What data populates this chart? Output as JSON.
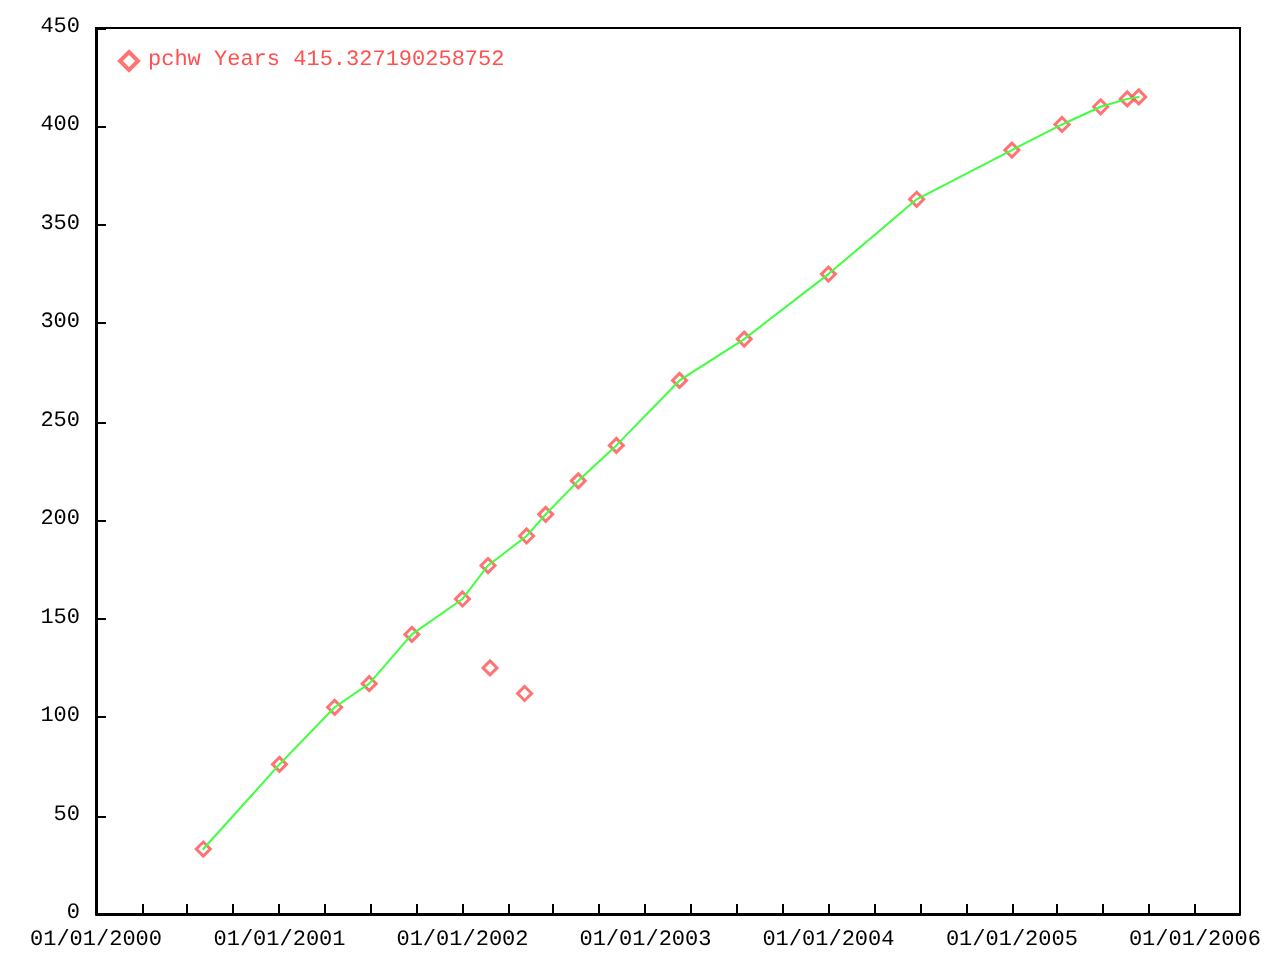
{
  "chart_data": {
    "type": "scatter",
    "xlim": [
      "2000-01-01",
      "2006-04-01"
    ],
    "xticks": [
      {
        "value": "2000-01-01",
        "label": "01/01/2000"
      },
      {
        "value": "2000-04-01",
        "label": null
      },
      {
        "value": "2000-07-01",
        "label": null
      },
      {
        "value": "2000-10-01",
        "label": null
      },
      {
        "value": "2001-01-01",
        "label": "01/01/2001"
      },
      {
        "value": "2001-04-01",
        "label": null
      },
      {
        "value": "2001-07-01",
        "label": null
      },
      {
        "value": "2001-10-01",
        "label": null
      },
      {
        "value": "2002-01-01",
        "label": "01/01/2002"
      },
      {
        "value": "2002-04-01",
        "label": null
      },
      {
        "value": "2002-07-01",
        "label": null
      },
      {
        "value": "2002-10-01",
        "label": null
      },
      {
        "value": "2003-01-01",
        "label": "01/01/2003"
      },
      {
        "value": "2003-04-01",
        "label": null
      },
      {
        "value": "2003-07-01",
        "label": null
      },
      {
        "value": "2003-10-01",
        "label": null
      },
      {
        "value": "2004-01-01",
        "label": "01/01/2004"
      },
      {
        "value": "2004-04-01",
        "label": null
      },
      {
        "value": "2004-07-01",
        "label": null
      },
      {
        "value": "2004-10-01",
        "label": null
      },
      {
        "value": "2005-01-01",
        "label": "01/01/2005"
      },
      {
        "value": "2005-04-01",
        "label": null
      },
      {
        "value": "2005-07-01",
        "label": null
      },
      {
        "value": "2005-10-01",
        "label": null
      },
      {
        "value": "2006-01-01",
        "label": "01/01/2006"
      }
    ],
    "ylim": [
      0,
      450
    ],
    "yticks": [
      0,
      50,
      100,
      150,
      200,
      250,
      300,
      350,
      400,
      450
    ],
    "grid": false,
    "legend": "top left",
    "series": [
      {
        "name": "pchw Years 415.327190258752",
        "marker": "diamond",
        "color": "#ff5050",
        "x": [
          "2000-08-02",
          "2001-01-01",
          "2001-04-21",
          "2001-06-29",
          "2001-09-22",
          "2002-01-01",
          "2002-02-21",
          "2002-02-25",
          "2002-05-05",
          "2002-05-09",
          "2002-06-16",
          "2002-08-20",
          "2002-11-04",
          "2003-03-10",
          "2003-07-17",
          "2004-01-01",
          "2004-06-25",
          "2005-01-01",
          "2005-04-11",
          "2005-06-27",
          "2005-08-19",
          "2005-09-11"
        ],
        "values": [
          33,
          76,
          105,
          117,
          142,
          160,
          177,
          125,
          112,
          192,
          203,
          220,
          238,
          271,
          292,
          325,
          363,
          388,
          401,
          410,
          414,
          415
        ]
      },
      {
        "type": "line",
        "marker": "none",
        "color": "#40ff40",
        "x": [
          "2000-08-02",
          "2001-01-01",
          "2001-04-21",
          "2001-06-29",
          "2001-09-22",
          "2002-01-01",
          "2002-02-21",
          "2002-05-09",
          "2002-06-16",
          "2002-08-20",
          "2002-11-04",
          "2003-03-10",
          "2003-07-17",
          "2004-01-01",
          "2004-06-25",
          "2005-01-01",
          "2005-04-11",
          "2005-06-27",
          "2005-08-19",
          "2005-09-11"
        ],
        "values": [
          33,
          76,
          105,
          117,
          142,
          160,
          177,
          192,
          203,
          220,
          238,
          271,
          292,
          325,
          363,
          388,
          401,
          410,
          414,
          415
        ]
      }
    ]
  }
}
